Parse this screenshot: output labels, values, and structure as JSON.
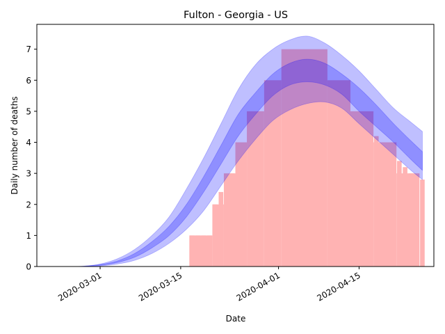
{
  "chart_data": {
    "type": "bar",
    "title": "Fulton - Georgia - US",
    "xlabel": "Date",
    "ylabel": "Daily number of deaths",
    "x_range": [
      "2020-02-19",
      "2020-04-28"
    ],
    "ylim": [
      0,
      7.8
    ],
    "x_ticks": [
      "2020-03-01",
      "2020-03-15",
      "2020-04-01",
      "2020-04-15"
    ],
    "y_ticks": [
      0,
      1,
      2,
      3,
      4,
      5,
      6,
      7
    ],
    "grid": false,
    "bar_color": "#ffb3b3",
    "band_color": "#0000ff",
    "bars": {
      "dates": [
        "2020-03-17",
        "2020-03-18",
        "2020-03-19",
        "2020-03-20",
        "2020-03-21",
        "2020-03-22",
        "2020-03-23",
        "2020-03-24",
        "2020-03-25",
        "2020-03-26",
        "2020-03-27",
        "2020-03-28",
        "2020-03-29",
        "2020-03-30",
        "2020-03-31",
        "2020-04-01",
        "2020-04-02",
        "2020-04-03",
        "2020-04-04",
        "2020-04-05",
        "2020-04-06",
        "2020-04-07",
        "2020-04-08",
        "2020-04-09",
        "2020-04-10",
        "2020-04-11",
        "2020-04-12",
        "2020-04-13",
        "2020-04-14",
        "2020-04-15",
        "2020-04-16",
        "2020-04-17",
        "2020-04-18",
        "2020-04-19",
        "2020-04-20",
        "2020-04-21",
        "2020-04-22",
        "2020-04-23",
        "2020-04-24",
        "2020-04-25",
        "2020-04-26"
      ],
      "values": [
        1.0,
        1.0,
        1.0,
        1.0,
        2.0,
        2.4,
        2.7,
        3.0,
        3.3,
        3.7,
        4.1,
        4.4,
        4.7,
        4.9,
        5.1,
        5.2,
        5.3,
        5.4,
        5.5,
        5.6,
        5.6,
        5.6,
        5.6,
        5.5,
        5.5,
        5.4,
        5.3,
        5.1,
        4.9,
        4.7,
        4.5,
        4.3,
        4.2,
        4.0,
        3.8,
        3.6,
        3.4,
        3.2,
        3.0,
        2.9,
        2.8
      ]
    },
    "weekly_bars": {
      "start_dates": [
        "2020-03-17",
        "2020-03-21",
        "2020-03-23",
        "2020-03-25",
        "2020-03-27",
        "2020-03-30",
        "2020-04-02",
        "2020-04-10",
        "2020-04-14",
        "2020-04-18",
        "2020-04-22"
      ],
      "end_dates": [
        "2020-03-21",
        "2020-03-23",
        "2020-03-25",
        "2020-03-27",
        "2020-03-30",
        "2020-04-02",
        "2020-04-10",
        "2020-04-14",
        "2020-04-18",
        "2020-04-22",
        "2020-04-26"
      ],
      "values": [
        1,
        2,
        3,
        4,
        5,
        6,
        7,
        6,
        5,
        4,
        3
      ]
    },
    "bands": {
      "dates": [
        "2020-02-24",
        "2020-02-27",
        "2020-03-01",
        "2020-03-04",
        "2020-03-07",
        "2020-03-10",
        "2020-03-13",
        "2020-03-16",
        "2020-03-19",
        "2020-03-22",
        "2020-03-25",
        "2020-03-28",
        "2020-03-31",
        "2020-04-03",
        "2020-04-06",
        "2020-04-09",
        "2020-04-12",
        "2020-04-15",
        "2020-04-18",
        "2020-04-21",
        "2020-04-24",
        "2020-04-26"
      ],
      "outer_low": [
        0,
        0.002,
        0.02,
        0.08,
        0.2,
        0.42,
        0.75,
        1.2,
        1.8,
        2.6,
        3.4,
        4.1,
        4.7,
        5.05,
        5.25,
        5.3,
        5.1,
        4.6,
        4.1,
        3.6,
        3.1,
        2.8
      ],
      "outer_high": [
        0,
        0.01,
        0.08,
        0.25,
        0.55,
        1.0,
        1.6,
        2.5,
        3.5,
        4.6,
        5.7,
        6.5,
        7.0,
        7.3,
        7.42,
        7.2,
        6.8,
        6.3,
        5.7,
        5.1,
        4.65,
        4.35
      ],
      "inner_low": [
        0,
        0.005,
        0.04,
        0.13,
        0.3,
        0.6,
        1.0,
        1.6,
        2.4,
        3.3,
        4.2,
        4.9,
        5.5,
        5.85,
        5.95,
        5.85,
        5.55,
        5.0,
        4.5,
        4.0,
        3.45,
        3.1
      ],
      "inner_high": [
        0,
        0.008,
        0.06,
        0.18,
        0.42,
        0.8,
        1.3,
        2.0,
        2.9,
        3.9,
        4.9,
        5.6,
        6.2,
        6.55,
        6.68,
        6.55,
        6.2,
        5.75,
        5.2,
        4.6,
        4.05,
        3.7
      ]
    }
  }
}
